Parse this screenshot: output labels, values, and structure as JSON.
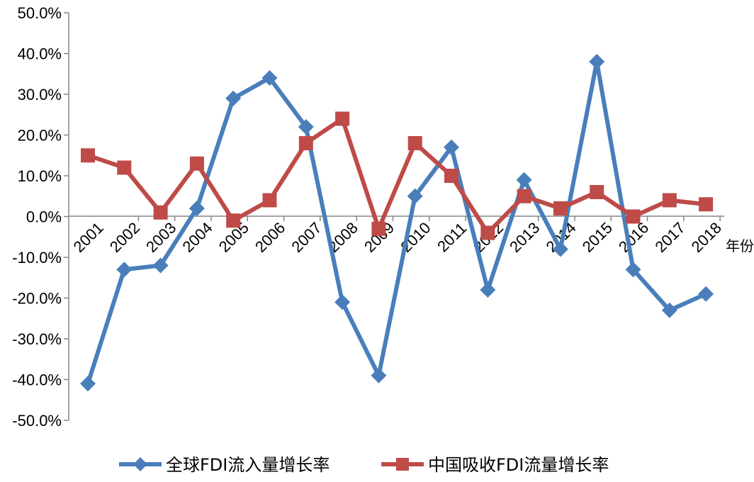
{
  "chart_data": {
    "type": "line",
    "x_unit_label": "年份",
    "categories": [
      "2001",
      "2002",
      "2003",
      "2004",
      "2005",
      "2006",
      "2007",
      "2008",
      "2009",
      "2010",
      "2011",
      "2012",
      "2013",
      "2014",
      "2015",
      "2016",
      "2017",
      "2018"
    ],
    "y_tick_labels": [
      "50.0%",
      "40.0%",
      "30.0%",
      "20.0%",
      "10.0%",
      "0.0%",
      "-10.0%",
      "-20.0%",
      "-30.0%",
      "-40.0%",
      "-50.0%"
    ],
    "ylim": [
      -50,
      50
    ],
    "series": [
      {
        "name": "全球FDI流入量增长率",
        "color": "#4a7ebb",
        "marker": "diamond",
        "values": [
          -41,
          -13,
          -12,
          2,
          29,
          34,
          22,
          -21,
          -39,
          5,
          17,
          -18,
          9,
          -8,
          38,
          -13,
          -23,
          -19
        ]
      },
      {
        "name": "中国吸收FDI流量增长率",
        "color": "#be4b48",
        "marker": "square",
        "values": [
          15,
          12,
          1,
          13,
          -1,
          4,
          18,
          24,
          -3,
          18,
          10,
          -4,
          5,
          2,
          6,
          0,
          4,
          3
        ]
      }
    ]
  }
}
